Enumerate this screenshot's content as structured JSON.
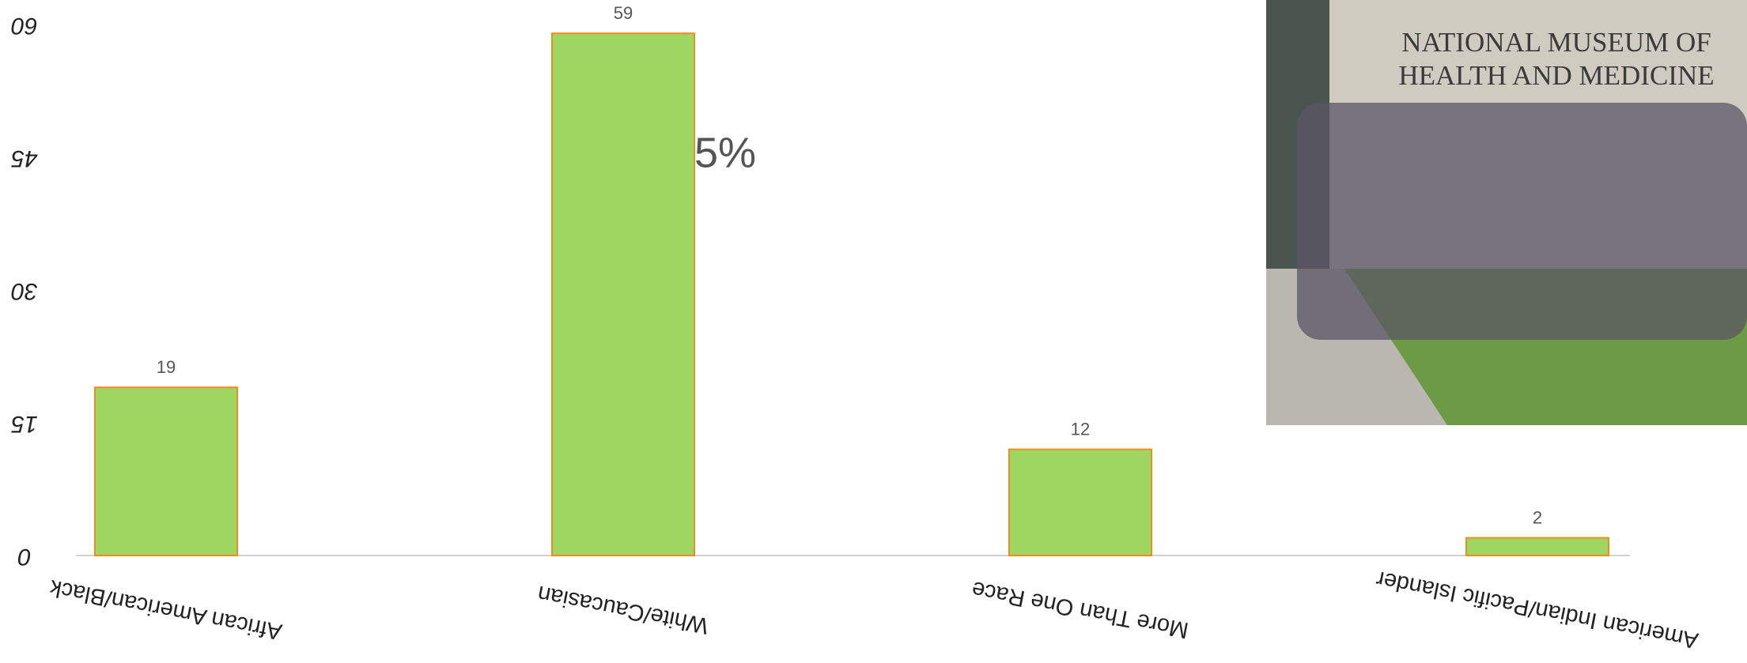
{
  "chart_data": {
    "type": "bar",
    "categories": [
      "African American/Black",
      "White/Caucasian",
      "More Than One Race",
      "American Indian/Pacific Islander"
    ],
    "values": [
      19,
      59,
      12,
      2
    ],
    "color": "#9fd661",
    "edge_color": "#f08c1e",
    "ylim": [
      0,
      60
    ],
    "yticks": [
      0,
      15,
      30,
      45,
      60
    ],
    "annotation": "65%",
    "photo_sign": [
      "NATIONAL MUSEUM OF",
      "HEALTH AND MEDICINE"
    ]
  }
}
